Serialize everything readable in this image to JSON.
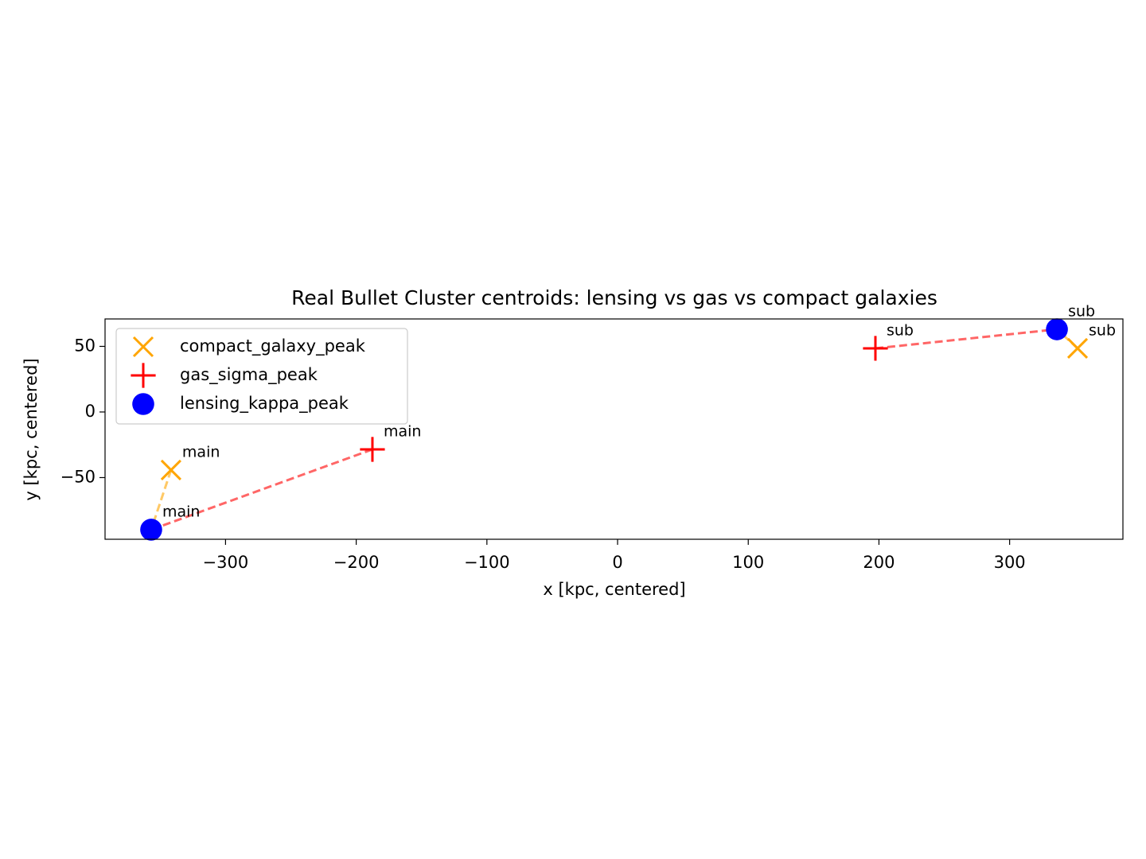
{
  "chart_data": {
    "type": "scatter",
    "title": "Real Bullet Cluster centroids: lensing vs gas vs compact galaxies",
    "xlabel": "x [kpc, centered]",
    "ylabel": "y [kpc, centered]",
    "series": [
      {
        "name": "compact_galaxy_peak",
        "color": "#ffa500",
        "marker": "x",
        "labels": [
          "main",
          "sub"
        ],
        "x": [
          -341.7,
          352.0
        ],
        "values": [
          -44.2,
          48.5
        ]
      },
      {
        "name": "gas_sigma_peak",
        "color": "#ff0000",
        "marker": "+",
        "labels": [
          "main",
          "sub"
        ],
        "x": [
          -187.6,
          197.3
        ],
        "values": [
          -28.5,
          48.5
        ]
      },
      {
        "name": "lensing_kappa_peak",
        "color": "#0000ff",
        "marker": "o",
        "labels": [
          "main",
          "sub"
        ],
        "x": [
          -356.9,
          336.2
        ],
        "values": [
          -89.7,
          63.0
        ]
      }
    ],
    "xlim": [
      -392.2,
      386.7
    ],
    "ylim": [
      -97.0,
      70.9
    ],
    "xticks": [
      {
        "value": -300,
        "label": "−300"
      },
      {
        "value": -200,
        "label": "−200"
      },
      {
        "value": -100,
        "label": "−100"
      },
      0,
      100,
      200,
      300
    ],
    "yticks": [
      {
        "value": -50,
        "label": "−50"
      },
      0,
      50
    ],
    "legend": "upper left",
    "grid": false
  }
}
